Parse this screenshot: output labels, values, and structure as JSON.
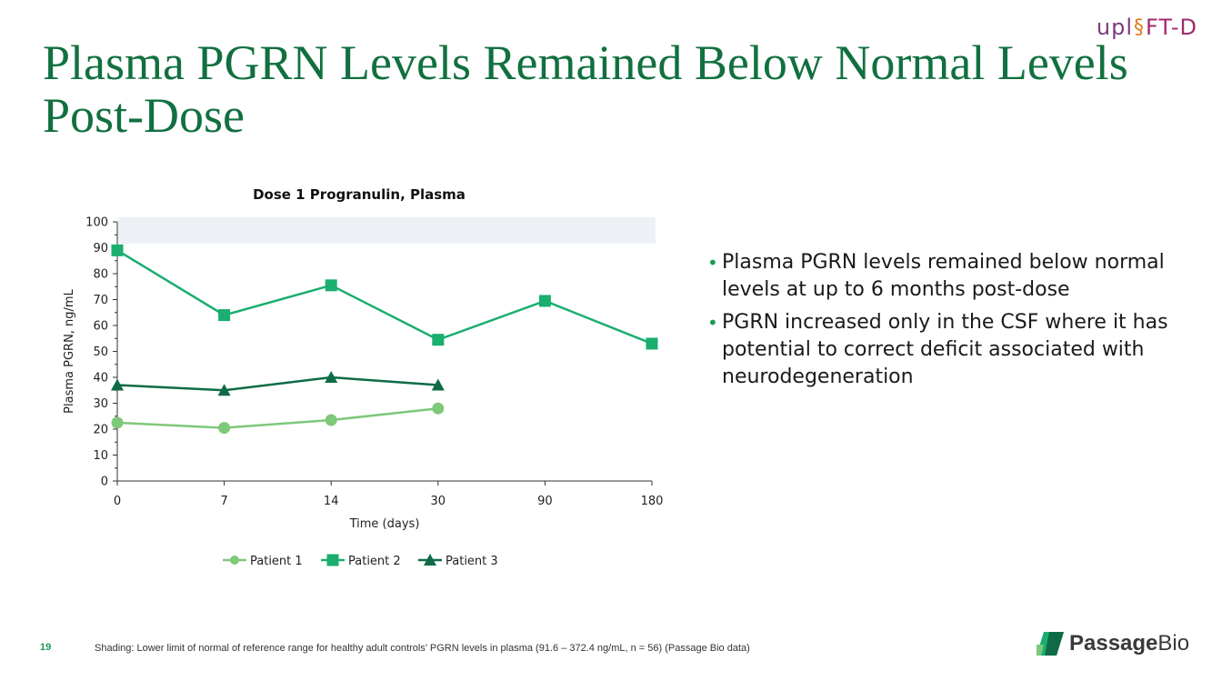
{
  "brand": {
    "program_logo_a": "upl",
    "program_logo_b": "FT-D",
    "company_bold": "Passage",
    "company_rest": "Bio"
  },
  "slide": {
    "title": "Plasma PGRN Levels Remained Below Normal Levels Post-Dose",
    "page_number": "19",
    "footnote": "Shading: Lower limit of normal of reference range for healthy adult controls’ PGRN levels in plasma (91.6 – 372.4 ng/mL, n = 56) (Passage Bio data)",
    "bullets": [
      "Plasma PGRN levels remained below normal levels at up to 6 months post-dose",
      "PGRN increased only in the CSF where it has potential to correct deficit associated with neurodegeneration"
    ]
  },
  "colors": {
    "title": "#11703f",
    "patient1": "#7ec87a",
    "patient2": "#1aae6f",
    "patient3": "#0e6b45",
    "shading": "#edf1f6"
  },
  "chart_data": {
    "type": "line",
    "title": "Dose 1 Progranulin, Plasma",
    "xlabel": "Time (days)",
    "ylabel": "Plasma PGRN, ng/mL",
    "categories": [
      "0",
      "7",
      "14",
      "30",
      "90",
      "180"
    ],
    "ylim": [
      0,
      100
    ],
    "yticks": [
      0,
      10,
      20,
      30,
      40,
      50,
      60,
      70,
      80,
      90,
      100
    ],
    "shaded_region": {
      "y_from": 91.6,
      "y_to": 100
    },
    "legend_position": "bottom",
    "series": [
      {
        "name": "Patient 1",
        "marker": "circle",
        "values": [
          22.5,
          20.5,
          23.5,
          28,
          null,
          null
        ]
      },
      {
        "name": "Patient 2",
        "marker": "square",
        "values": [
          89,
          64,
          75.5,
          54.5,
          69.5,
          53
        ]
      },
      {
        "name": "Patient 3",
        "marker": "triangle",
        "values": [
          37,
          35,
          40,
          37,
          null,
          null
        ]
      }
    ]
  }
}
